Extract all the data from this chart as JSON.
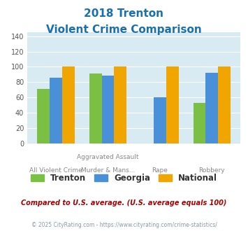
{
  "title_line1": "2018 Trenton",
  "title_line2": "Violent Crime Comparison",
  "category_labels_top": [
    "",
    "Aggravated Assault",
    "",
    ""
  ],
  "category_labels_bottom": [
    "All Violent Crime",
    "Murder & Mans...",
    "Rape",
    "Robbery"
  ],
  "series": {
    "Trenton": [
      71,
      91,
      0,
      53
    ],
    "Georgia": [
      86,
      88,
      60,
      92
    ],
    "National": [
      100,
      100,
      100,
      100
    ]
  },
  "bar_colors": {
    "Trenton": "#7bc043",
    "Georgia": "#4a90d9",
    "National": "#f0a500"
  },
  "ylim": [
    0,
    145
  ],
  "yticks": [
    0,
    20,
    40,
    60,
    80,
    100,
    120,
    140
  ],
  "title_color": "#1a6faf",
  "title_fontsize": 11,
  "axis_bg_color": "#d8eaf2",
  "fig_bg_color": "#ffffff",
  "legend_entries": [
    "Trenton",
    "Georgia",
    "National"
  ],
  "footnote1": "Compared to U.S. average. (U.S. average equals 100)",
  "footnote2": "© 2025 CityRating.com - https://www.cityrating.com/crime-statistics/",
  "footnote1_color": "#aa0000",
  "footnote2_color": "#8899aa"
}
